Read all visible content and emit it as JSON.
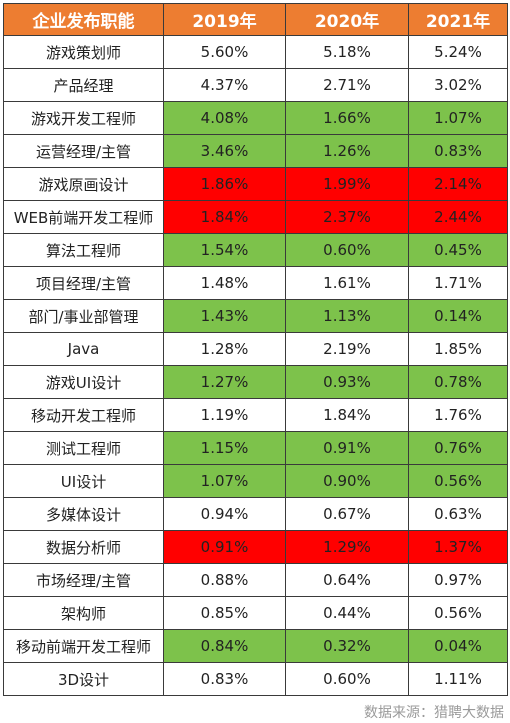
{
  "colors": {
    "header_bg": "#ed7d31",
    "green": "#7dc24b",
    "red": "#ff0000",
    "white": "#ffffff"
  },
  "source": "数据来源：猎聘大数据",
  "chart_data": {
    "type": "table",
    "columns": [
      "企业发布职能",
      "2019年",
      "2020年",
      "2021年"
    ],
    "rows": [
      {
        "role": "游戏策划师",
        "values": [
          "5.60%",
          "5.18%",
          "5.24%"
        ],
        "highlight": "none"
      },
      {
        "role": "产品经理",
        "values": [
          "4.37%",
          "2.71%",
          "3.02%"
        ],
        "highlight": "none"
      },
      {
        "role": "游戏开发工程师",
        "values": [
          "4.08%",
          "1.66%",
          "1.07%"
        ],
        "highlight": "green"
      },
      {
        "role": "运营经理/主管",
        "values": [
          "3.46%",
          "1.26%",
          "0.83%"
        ],
        "highlight": "green"
      },
      {
        "role": "游戏原画设计",
        "values": [
          "1.86%",
          "1.99%",
          "2.14%"
        ],
        "highlight": "red"
      },
      {
        "role": "WEB前端开发工程师",
        "values": [
          "1.84%",
          "2.37%",
          "2.44%"
        ],
        "highlight": "red"
      },
      {
        "role": "算法工程师",
        "values": [
          "1.54%",
          "0.60%",
          "0.45%"
        ],
        "highlight": "green"
      },
      {
        "role": "项目经理/主管",
        "values": [
          "1.48%",
          "1.61%",
          "1.71%"
        ],
        "highlight": "none"
      },
      {
        "role": "部门/事业部管理",
        "values": [
          "1.43%",
          "1.13%",
          "0.14%"
        ],
        "highlight": "green"
      },
      {
        "role": "Java",
        "values": [
          "1.28%",
          "2.19%",
          "1.85%"
        ],
        "highlight": "none"
      },
      {
        "role": "游戏UI设计",
        "values": [
          "1.27%",
          "0.93%",
          "0.78%"
        ],
        "highlight": "green"
      },
      {
        "role": "移动开发工程师",
        "values": [
          "1.19%",
          "1.84%",
          "1.76%"
        ],
        "highlight": "none"
      },
      {
        "role": "测试工程师",
        "values": [
          "1.15%",
          "0.91%",
          "0.76%"
        ],
        "highlight": "green"
      },
      {
        "role": "UI设计",
        "values": [
          "1.07%",
          "0.90%",
          "0.56%"
        ],
        "highlight": "green"
      },
      {
        "role": "多媒体设计",
        "values": [
          "0.94%",
          "0.67%",
          "0.63%"
        ],
        "highlight": "none"
      },
      {
        "role": "数据分析师",
        "values": [
          "0.91%",
          "1.29%",
          "1.37%"
        ],
        "highlight": "red"
      },
      {
        "role": "市场经理/主管",
        "values": [
          "0.88%",
          "0.64%",
          "0.97%"
        ],
        "highlight": "none"
      },
      {
        "role": "架构师",
        "values": [
          "0.85%",
          "0.44%",
          "0.56%"
        ],
        "highlight": "none"
      },
      {
        "role": "移动前端开发工程师",
        "values": [
          "0.84%",
          "0.32%",
          "0.04%"
        ],
        "highlight": "green"
      },
      {
        "role": "3D设计",
        "values": [
          "0.83%",
          "0.60%",
          "1.11%"
        ],
        "highlight": "none"
      }
    ]
  }
}
